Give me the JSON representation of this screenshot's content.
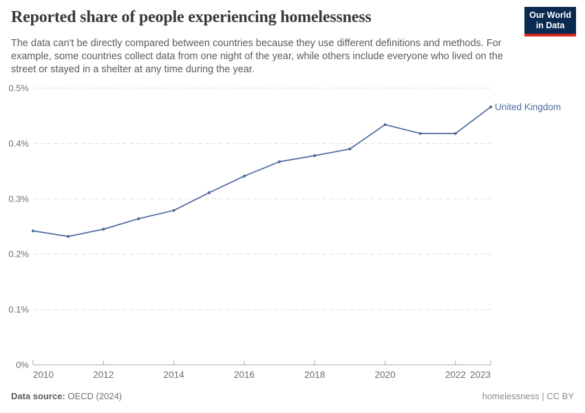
{
  "header": {
    "title": "Reported share of people experiencing homelessness",
    "subtitle": "The data can't be directly compared between countries because they use different definitions and methods. For example, some countries collect data from one night of the year, while others include everyone who lived on the street or stayed in a shelter at any time during the year.",
    "logo": {
      "line1": "Our World",
      "line2": "in Data"
    }
  },
  "chart_data": {
    "type": "line",
    "title": "Reported share of people experiencing homelessness",
    "x": [
      2010,
      2011,
      2012,
      2013,
      2014,
      2015,
      2016,
      2017,
      2018,
      2019,
      2020,
      2021,
      2022,
      2023
    ],
    "series": [
      {
        "name": "United Kingdom",
        "unit": "%",
        "values": [
          0.242,
          0.232,
          0.245,
          0.264,
          0.279,
          0.311,
          0.341,
          0.367,
          0.378,
          0.39,
          0.434,
          0.418,
          0.418,
          0.466
        ]
      }
    ],
    "end_label": "United Kingdom",
    "ylim": [
      0,
      0.5
    ],
    "y_ticks": [
      {
        "value": 0,
        "label": "0%"
      },
      {
        "value": 0.1,
        "label": "0.1%"
      },
      {
        "value": 0.2,
        "label": "0.2%"
      },
      {
        "value": 0.3,
        "label": "0.3%"
      },
      {
        "value": 0.4,
        "label": "0.4%"
      },
      {
        "value": 0.5,
        "label": "0.5%"
      }
    ],
    "x_ticks": [
      2010,
      2012,
      2014,
      2016,
      2018,
      2020,
      2022,
      2023
    ],
    "grid": "horizontal-dashed",
    "legend_position": "end-of-line",
    "line_color": "#4C6A9C"
  },
  "footer": {
    "source_label": "Data source:",
    "source_value": "OECD (2024)",
    "note": "homelessness | CC BY"
  },
  "colors": {
    "accent_line": "#4C6A9C",
    "logo_bg": "#0b2a51",
    "logo_underline": "#d8281c",
    "gridline": "#dedede",
    "axis": "#a8a8a8",
    "tick_text": "#6e6e6e"
  }
}
